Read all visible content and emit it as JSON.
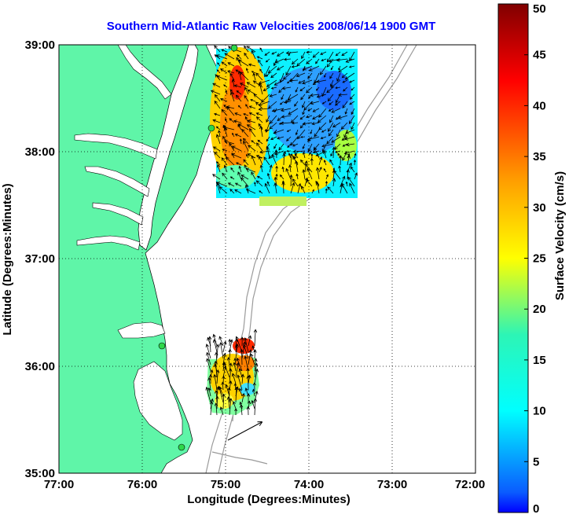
{
  "title": "Southern Mid-Atlantic Raw Velocities 2008/06/14 1900 GMT",
  "xlabel": "Longitude (Degrees:Minutes)",
  "ylabel": "Latitude (Degrees:Minutes)",
  "x_ticks": [
    "77:00",
    "76:00",
    "75:00",
    "74:00",
    "73:00",
    "72:00"
  ],
  "y_ticks": [
    "39:00",
    "38:00",
    "37:00",
    "36:00",
    "35:00"
  ],
  "colorbar": {
    "label": "Surface Velocity (cm/s)",
    "ticks": [
      "0",
      "5",
      "10",
      "15",
      "20",
      "25",
      "30",
      "35",
      "40",
      "45",
      "50"
    ],
    "min": 0,
    "max": 50
  },
  "colors": {
    "title": "#0000ff",
    "land": "#5ff5a8",
    "ocean": "#ffffff",
    "station": "#2ed84a",
    "arrow": "#000000",
    "bathymetry": "#9a9a9a"
  },
  "chart_data": {
    "type": "heatmap",
    "map_extent": {
      "lon": [
        -77,
        -72
      ],
      "lat": [
        35,
        39
      ]
    },
    "grid": true,
    "legend": "colorbar-right",
    "stations": [
      {
        "lon": -75.1,
        "lat": 38.98
      },
      {
        "lon": -75.1,
        "lat": 38.22
      },
      {
        "lon": -75.75,
        "lat": 36.18
      },
      {
        "lon": -75.5,
        "lat": 35.25
      }
    ],
    "scale_arrow": {
      "lon": -74.6,
      "lat": 35.45
    }
  }
}
